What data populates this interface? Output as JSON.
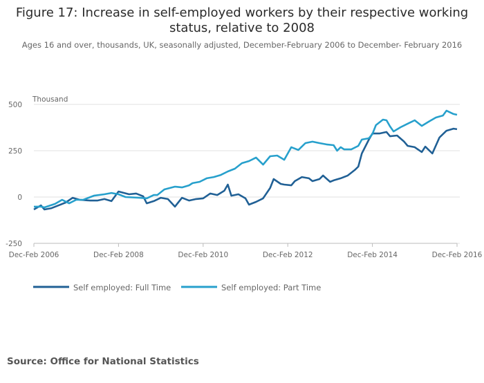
{
  "chart_data": {
    "type": "line",
    "title_lines": [
      "Figure 17: Increase in self-employed workers by their respective working",
      "status, relative to 2008"
    ],
    "subtitle": "Ages 16 and over, thousands, UK, seasonally adjusted, December-February 2006 to December- February 2016",
    "ylabel": "Thousand",
    "ylim": [
      -250,
      500
    ],
    "yticks": [
      500,
      250,
      0,
      -250
    ],
    "ytick_labels": [
      "500",
      "250",
      "0",
      "-250"
    ],
    "x_unit": "months since Dec-Feb 2006",
    "xlim": [
      0,
      120
    ],
    "xticks": [
      0,
      24,
      48,
      72,
      96,
      120
    ],
    "xtick_labels": [
      "Dec-Feb 2006",
      "Dec-Feb 2008",
      "Dec-Feb 2010",
      "Dec-Feb 2012",
      "Dec-Feb 2014",
      "Dec-Feb 2016"
    ],
    "grid": true,
    "legend_position": "bottom-left",
    "series": [
      {
        "name": "Self employed: Full Time",
        "color": "#206095",
        "x": [
          0,
          2,
          3,
          5,
          7,
          9,
          11,
          13,
          16,
          18,
          20,
          22,
          24,
          27,
          29,
          31,
          32,
          34,
          36,
          38,
          40,
          42,
          44,
          46,
          48,
          50,
          52,
          54,
          55,
          56,
          58,
          60,
          61,
          63,
          65,
          67,
          68,
          70,
          71,
          73,
          74,
          76,
          78,
          79,
          81,
          82,
          84,
          85,
          87,
          89,
          91,
          92,
          93,
          95,
          96,
          98,
          100,
          101,
          103,
          105,
          106,
          108,
          110,
          111,
          113,
          115,
          117,
          119,
          120
        ],
        "values": [
          -67,
          -45,
          -67,
          -60,
          -45,
          -30,
          -4,
          -15,
          -19,
          -19,
          -11,
          -22,
          30,
          15,
          19,
          4,
          -34,
          -22,
          -4,
          -11,
          -52,
          -4,
          -19,
          -11,
          -7,
          19,
          11,
          34,
          67,
          7,
          15,
          -7,
          -41,
          -26,
          -7,
          49,
          97,
          71,
          67,
          63,
          86,
          108,
          101,
          86,
          97,
          116,
          82,
          90,
          101,
          116,
          146,
          164,
          235,
          310,
          343,
          343,
          351,
          328,
          332,
          299,
          276,
          269,
          243,
          272,
          235,
          321,
          358,
          369,
          366
        ]
      },
      {
        "name": "Self employed: Part Time",
        "color": "#27a0cc",
        "x": [
          0,
          2,
          3,
          6,
          8,
          10,
          12,
          14,
          17,
          20,
          22,
          24,
          26,
          30,
          32,
          34,
          35,
          37,
          40,
          42,
          44,
          45,
          47,
          49,
          51,
          53,
          55,
          57,
          59,
          61,
          63,
          65,
          67,
          69,
          71,
          73,
          75,
          77,
          79,
          81,
          83,
          85,
          86,
          87,
          88,
          90,
          92,
          93,
          95,
          96,
          97,
          99,
          100,
          101,
          102,
          104,
          106,
          108,
          110,
          112,
          114,
          116,
          117,
          119,
          120
        ],
        "values": [
          -52,
          -52,
          -56,
          -37,
          -15,
          -34,
          -15,
          -15,
          7,
          15,
          22,
          15,
          0,
          -4,
          -7,
          11,
          11,
          41,
          56,
          52,
          63,
          75,
          82,
          101,
          108,
          119,
          138,
          153,
          183,
          194,
          213,
          175,
          220,
          224,
          201,
          269,
          254,
          291,
          299,
          291,
          284,
          280,
          250,
          269,
          257,
          257,
          276,
          310,
          317,
          340,
          388,
          418,
          414,
          381,
          354,
          377,
          396,
          414,
          384,
          407,
          429,
          440,
          466,
          448,
          444
        ]
      }
    ]
  },
  "source": "Source: Office for National Statistics"
}
